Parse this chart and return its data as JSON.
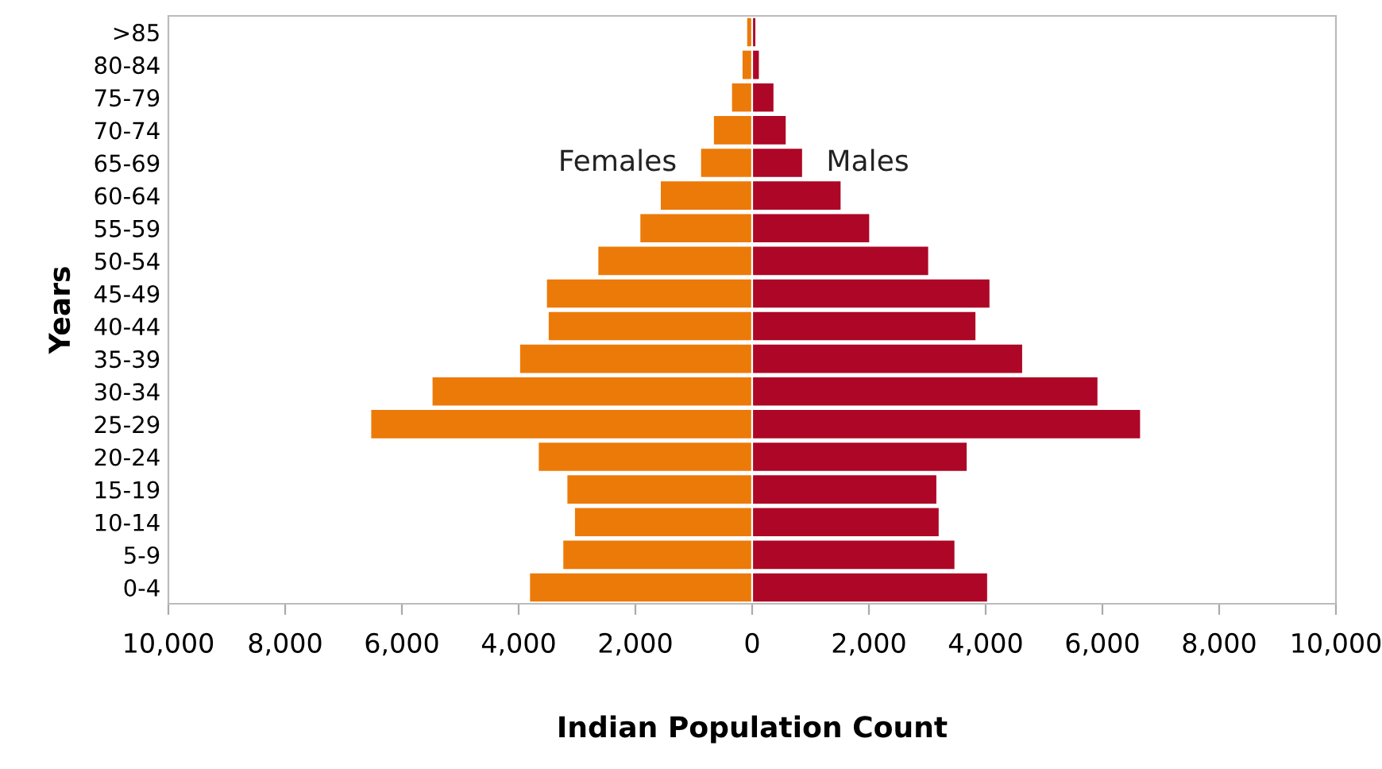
{
  "chart_data": {
    "type": "bar",
    "orientation": "horizontal",
    "xlabel": "Indian Population Count",
    "ylabel": "Years",
    "categories": [
      ">85",
      "80-84",
      "75-79",
      "70-74",
      "65-69",
      "60-64",
      "55-59",
      "50-54",
      "45-49",
      "40-44",
      "35-39",
      "30-34",
      "25-29",
      "20-24",
      "15-19",
      "10-14",
      "5-9",
      "0-4"
    ],
    "series": [
      {
        "name": "Females",
        "color": "#ec7a08",
        "values": [
          -100,
          -180,
          -360,
          -670,
          -890,
          -1580,
          -1930,
          -2650,
          -3530,
          -3500,
          -3990,
          -5490,
          -6540,
          -3670,
          -3180,
          -3050,
          -3250,
          -3820
        ]
      },
      {
        "name": "Males",
        "color": "#ad0626",
        "values": [
          70,
          130,
          380,
          590,
          870,
          1530,
          2020,
          3030,
          4080,
          3840,
          4640,
          5930,
          6660,
          3690,
          3170,
          3210,
          3480,
          4040
        ]
      }
    ],
    "xlim": [
      -10000,
      10000
    ],
    "xticks": [
      {
        "value": -10000,
        "label": "10,000"
      },
      {
        "value": -8000,
        "label": "8,000"
      },
      {
        "value": -6000,
        "label": "6,000"
      },
      {
        "value": -4000,
        "label": "4,000"
      },
      {
        "value": -2000,
        "label": "2,000"
      },
      0,
      {
        "value": 2000,
        "label": "2,000"
      },
      {
        "value": 4000,
        "label": "4,000"
      },
      {
        "value": 6000,
        "label": "6,000"
      },
      {
        "value": 8000,
        "label": "8,000"
      },
      {
        "value": 10000,
        "label": "10,000"
      }
    ],
    "stacked": true,
    "grid": false,
    "legend": false
  }
}
